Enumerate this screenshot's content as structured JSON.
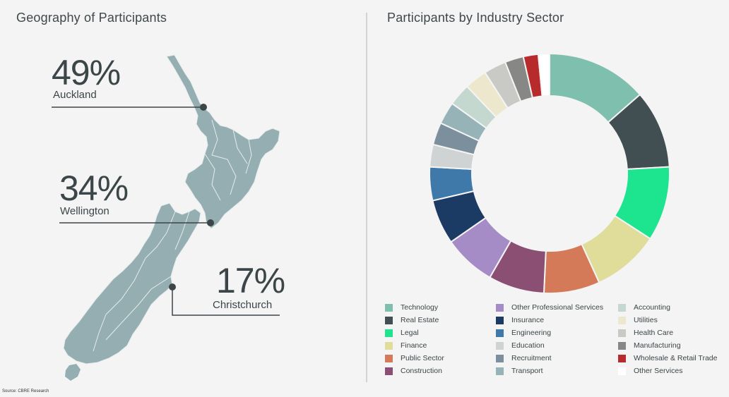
{
  "left_title": "Geography of Participants",
  "right_title": "Participants by Industry Sector",
  "source": "Source: CBRE Research",
  "chart_data": [
    {
      "type": "map",
      "title": "Geography of Participants",
      "points": [
        {
          "label": "Auckland",
          "percent_label": "49%",
          "value": 49
        },
        {
          "label": "Wellington",
          "percent_label": "34%",
          "value": 34
        },
        {
          "label": "Christchurch",
          "percent_label": "17%",
          "value": 17
        }
      ]
    },
    {
      "type": "pie",
      "title": "Participants by Industry Sector",
      "donut": true,
      "slices": [
        {
          "label": "Technology",
          "value": 13.5,
          "color": "#7fbfae"
        },
        {
          "label": "Real Estate",
          "value": 10.5,
          "color": "#424f52"
        },
        {
          "label": "Legal",
          "value": 10,
          "color": "#1de58f"
        },
        {
          "label": "Finance",
          "value": 9,
          "color": "#e0dc9a"
        },
        {
          "label": "Public Sector",
          "value": 7.5,
          "color": "#d57a58"
        },
        {
          "label": "Construction",
          "value": 7.5,
          "color": "#8a4f72"
        },
        {
          "label": "Other Professional Services",
          "value": 7,
          "color": "#a58cc6"
        },
        {
          "label": "Insurance",
          "value": 6,
          "color": "#1b3a64"
        },
        {
          "label": "Engineering",
          "value": 4.5,
          "color": "#3f79a9"
        },
        {
          "label": "Education",
          "value": 3,
          "color": "#cfd3d3"
        },
        {
          "label": "Recruitment",
          "value": 3,
          "color": "#7c8f9c"
        },
        {
          "label": "Transport",
          "value": 3,
          "color": "#96b3b8"
        },
        {
          "label": "Accounting",
          "value": 3,
          "color": "#c4d8d0"
        },
        {
          "label": "Utilities",
          "value": 3,
          "color": "#ede8cd"
        },
        {
          "label": "Health Care",
          "value": 3,
          "color": "#c9c9c6"
        },
        {
          "label": "Manufacturing",
          "value": 2.5,
          "color": "#878886"
        },
        {
          "label": "Wholesale & Retail Trade",
          "value": 2,
          "color": "#b82b2c"
        },
        {
          "label": "Other Services",
          "value": 1.5,
          "color": "#ffffff"
        }
      ]
    }
  ]
}
